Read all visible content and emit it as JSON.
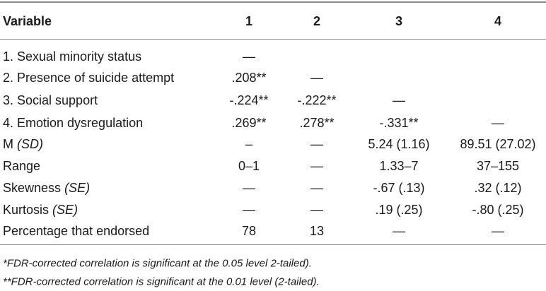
{
  "table": {
    "header": [
      "Variable",
      "1",
      "2",
      "3",
      "4"
    ],
    "rows": [
      {
        "label": "1. Sexual minority status",
        "cells": [
          "—"
        ]
      },
      {
        "label": "2. Presence of suicide attempt",
        "cells": [
          ".208**",
          "—"
        ]
      },
      {
        "label": "3. Social support",
        "cells": [
          "-.224**",
          "-.222**",
          "—"
        ]
      },
      {
        "label": "4. Emotion dysregulation",
        "cells": [
          ".269**",
          ".278**",
          "-.331**",
          "—"
        ]
      },
      {
        "label": "M",
        "label_italic": "(SD)",
        "cells": [
          "–",
          "—",
          "5.24 (1.16)",
          "89.51 (27.02)"
        ]
      },
      {
        "label": "Range",
        "cells": [
          "0–1",
          "—",
          "1.33–7",
          "37–155"
        ]
      },
      {
        "label": "Skewness",
        "label_italic": "(SE)",
        "cells": [
          "—",
          "—",
          "-.67 (.13)",
          ".32 (.12)"
        ]
      },
      {
        "label": "Kurtosis",
        "label_italic": "(SE)",
        "cells": [
          "—",
          "—",
          ".19 (.25)",
          "-.80 (.25)"
        ]
      },
      {
        "label": "Percentage that endorsed",
        "cells": [
          "78",
          "13",
          "—",
          "—"
        ]
      }
    ],
    "footnotes": [
      "*FDR-corrected correlation is significant at the 0.05 level 2-tailed).",
      "**FDR-corrected correlation is significant at the 0.01 level (2-tailed)."
    ]
  }
}
